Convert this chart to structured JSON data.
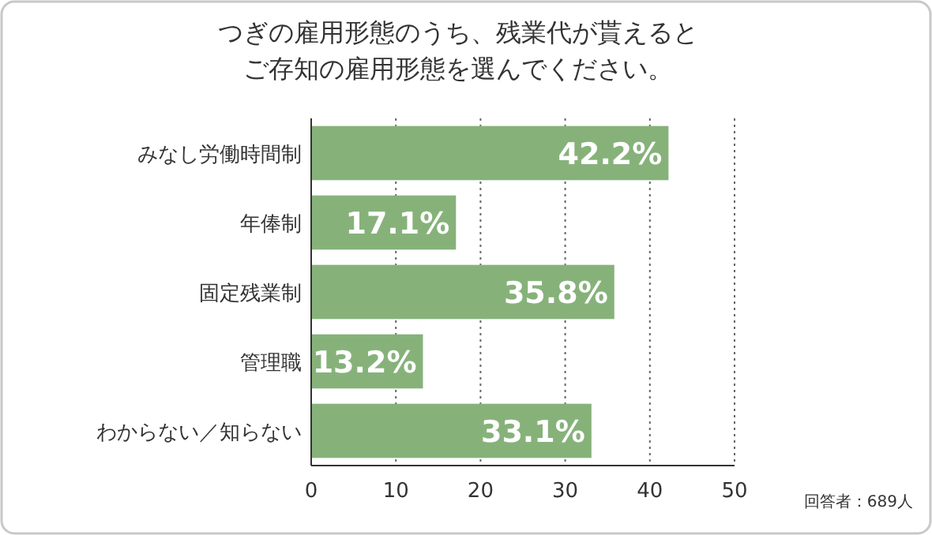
{
  "chart_data": {
    "type": "bar",
    "orientation": "horizontal",
    "title": "つぎの雇用形態のうち、残業代が貰えるとご存知の雇用形態を選んでください。",
    "categories": [
      "みなし労働時間制",
      "年俸制",
      "固定残業制",
      "管理職",
      "わからない／知らない"
    ],
    "values": [
      42.2,
      17.1,
      35.8,
      13.2,
      33.1
    ],
    "color": "#86b27a",
    "value_labels": [
      "42.2%",
      "17.1%",
      "35.8%",
      "13.2%",
      "33.1%"
    ],
    "xlim": [
      0,
      50
    ],
    "xticks": [
      0,
      10,
      20,
      30,
      40,
      50
    ],
    "grid": "x",
    "line_style": "dotted",
    "annotations": [
      "回答者：689人"
    ]
  }
}
